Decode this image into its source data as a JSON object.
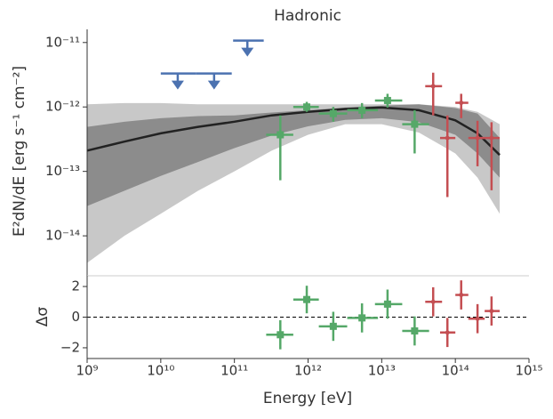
{
  "chart_data": [
    {
      "type": "errorbar",
      "title": "Hadronic",
      "ylabel": "E²dN/dE [erg s⁻¹ cm⁻²]",
      "xscale": "log",
      "yscale": "log",
      "xlim": [
        1000000000.0,
        1000000000000000.0
      ],
      "ylim": [
        2.4e-15,
        1.6e-11
      ],
      "yticks": [
        {
          "value": 1e-14,
          "label": "10⁻¹⁴"
        },
        {
          "value": 1e-13,
          "label": "10⁻¹³"
        },
        {
          "value": 1e-12,
          "label": "10⁻¹²"
        },
        {
          "value": 1e-11,
          "label": "10⁻¹¹"
        }
      ],
      "bands": [
        {
          "color": "#c8c8c8",
          "x": [
            1000000000.0,
            3200000000.0,
            10000000000.0,
            32000000000.0,
            100000000000.0,
            320000000000.0,
            1000000000000.0,
            3200000000000.0,
            10000000000000.0,
            32000000000000.0,
            100000000000000.0,
            200000000000000.0,
            400000000000000.0
          ],
          "upper": [
            1.1e-12,
            1.15e-12,
            1.15e-12,
            1.1e-12,
            1.1e-12,
            1.1e-12,
            1.1e-12,
            1.1e-12,
            1.1e-12,
            1.1e-12,
            1e-12,
            8.4e-13,
            5.4e-13
          ],
          "lower": [
            3.8e-15,
            1e-14,
            2.2e-14,
            5e-14,
            1e-13,
            2.1e-13,
            3.7e-13,
            5.4e-13,
            5.4e-13,
            4e-13,
            1.9e-13,
            8e-14,
            2.2e-14
          ]
        },
        {
          "color": "#8c8c8c",
          "x": [
            1000000000.0,
            3200000000.0,
            10000000000.0,
            32000000000.0,
            100000000000.0,
            320000000000.0,
            1000000000000.0,
            3200000000000.0,
            10000000000000.0,
            32000000000000.0,
            100000000000000.0,
            200000000000000.0,
            400000000000000.0
          ],
          "upper": [
            4.9e-13,
            5.9e-13,
            6.7e-13,
            7.2e-13,
            7.4e-13,
            8.2e-13,
            8.9e-13,
            9.8e-13,
            1.05e-12,
            1.1e-12,
            9.6e-13,
            7.9e-13,
            3.3e-13
          ],
          "lower": [
            2.9e-14,
            5e-14,
            8.5e-14,
            1.4e-13,
            2.3e-13,
            3.6e-13,
            5e-13,
            6.3e-13,
            6.7e-13,
            5.8e-13,
            3.7e-13,
            1.9e-13,
            8e-14
          ]
        }
      ],
      "line": {
        "color": "#222222",
        "x": [
          1000000000.0,
          3200000000.0,
          10000000000.0,
          32000000000.0,
          100000000000.0,
          320000000000.0,
          1000000000000.0,
          3200000000000.0,
          10000000000000.0,
          32000000000000.0,
          100000000000000.0,
          200000000000000.0,
          400000000000000.0
        ],
        "y": [
          2.1e-13,
          2.9e-13,
          3.9e-13,
          4.9e-13,
          5.9e-13,
          7.4e-13,
          8.4e-13,
          9.3e-13,
          9.8e-13,
          8.9e-13,
          6.2e-13,
          3.9e-13,
          1.8e-13
        ]
      },
      "upper_limits": {
        "color": "#4c72b0",
        "x": [
          17000000000.0,
          53000000000.0,
          150000000000.0
        ],
        "x_low": [
          10000000000.0,
          30000000000.0,
          96000000000.0
        ],
        "x_high": [
          30000000000.0,
          92000000000.0,
          250000000000.0
        ],
        "y": [
          3.3e-12,
          3.3e-12,
          1.07e-11
        ]
      },
      "points": [
        {
          "color": "#55a868",
          "marker": "square",
          "x": [
            420000000000.0,
            960000000000.0,
            2200000000000.0,
            5400000000000.0,
            12000000000000.0,
            28000000000000.0
          ],
          "x_low": [
            270000000000.0,
            630000000000.0,
            1400000000000.0,
            3400000000000.0,
            8100000000000.0,
            19000000000000.0
          ],
          "x_high": [
            630000000000.0,
            1400000000000.0,
            3400000000000.0,
            8900000000000.0,
            19000000000000.0,
            44000000000000.0
          ],
          "y": [
            3.7e-13,
            1e-12,
            7.9e-13,
            8.9e-13,
            1.26e-12,
            5.4e-13
          ],
          "y_low": [
            7.3e-14,
            8.4e-13,
            5.9e-13,
            6.7e-13,
            9.8e-13,
            1.9e-13
          ],
          "y_high": [
            7.4e-13,
            1.2e-12,
            1e-12,
            1.15e-12,
            1.6e-12,
            8.9e-13
          ]
        },
        {
          "color": "#c44e52",
          "marker": "circle",
          "x": [
            50000000000000.0,
            78000000000000.0,
            120000000000000.0,
            200000000000000.0,
            310000000000000.0
          ],
          "x_low": [
            39000000000000.0,
            62000000000000.0,
            100000000000000.0,
            150000000000000.0,
            250000000000000.0
          ],
          "x_high": [
            66000000000000.0,
            100000000000000.0,
            150000000000000.0,
            250000000000000.0,
            400000000000000.0
          ],
          "y": [
            2.1e-12,
            3.3e-13,
            1.16e-12,
            3.3e-13,
            3.3e-13
          ],
          "y_low": [
            7.4e-13,
            4e-14,
            6.7e-13,
            1.2e-13,
            5.1e-14
          ],
          "y_high": [
            3.4e-12,
            7.4e-13,
            1.6e-12,
            6.1e-13,
            5.8e-13
          ]
        }
      ]
    },
    {
      "type": "errorbar",
      "ylabel": "Δσ",
      "xlabel": "Energy [eV]",
      "xscale": "log",
      "xlim": [
        1000000000.0,
        1000000000000000.0
      ],
      "xticks": [
        {
          "value": 1000000000.0,
          "label": "10⁹"
        },
        {
          "value": 10000000000.0,
          "label": "10¹⁰"
        },
        {
          "value": 100000000000.0,
          "label": "10¹¹"
        },
        {
          "value": 1000000000000.0,
          "label": "10¹²"
        },
        {
          "value": 10000000000000.0,
          "label": "10¹³"
        },
        {
          "value": 100000000000000.0,
          "label": "10¹⁴"
        },
        {
          "value": 1000000000000000.0,
          "label": "10¹⁵"
        }
      ],
      "ylim": [
        -2.7,
        2.7
      ],
      "yticks": [
        2,
        0,
        {
          "value": -2,
          "label": "−2"
        }
      ],
      "hline": 0,
      "points": [
        {
          "color": "#55a868",
          "marker": "square",
          "x": [
            420000000000.0,
            960000000000.0,
            2200000000000.0,
            5400000000000.0,
            12000000000000.0,
            28000000000000.0
          ],
          "x_low": [
            270000000000.0,
            630000000000.0,
            1400000000000.0,
            3400000000000.0,
            8100000000000.0,
            19000000000000.0
          ],
          "x_high": [
            630000000000.0,
            1400000000000.0,
            3400000000000.0,
            8900000000000.0,
            19000000000000.0,
            44000000000000.0
          ],
          "y": [
            -1.15,
            1.15,
            -0.6,
            -0.05,
            0.85,
            -0.9
          ],
          "yerr": [
            0.95,
            0.9,
            0.95,
            0.95,
            0.95,
            0.95
          ]
        },
        {
          "color": "#c44e52",
          "marker": "circle",
          "x": [
            50000000000000.0,
            78000000000000.0,
            120000000000000.0,
            200000000000000.0,
            310000000000000.0
          ],
          "x_low": [
            39000000000000.0,
            62000000000000.0,
            100000000000000.0,
            150000000000000.0,
            250000000000000.0
          ],
          "x_high": [
            66000000000000.0,
            100000000000000.0,
            150000000000000.0,
            250000000000000.0,
            400000000000000.0
          ],
          "y": [
            1.0,
            -1.0,
            1.45,
            -0.1,
            0.4
          ],
          "yerr": [
            0.95,
            0.95,
            0.95,
            0.95,
            0.95
          ]
        }
      ]
    }
  ]
}
